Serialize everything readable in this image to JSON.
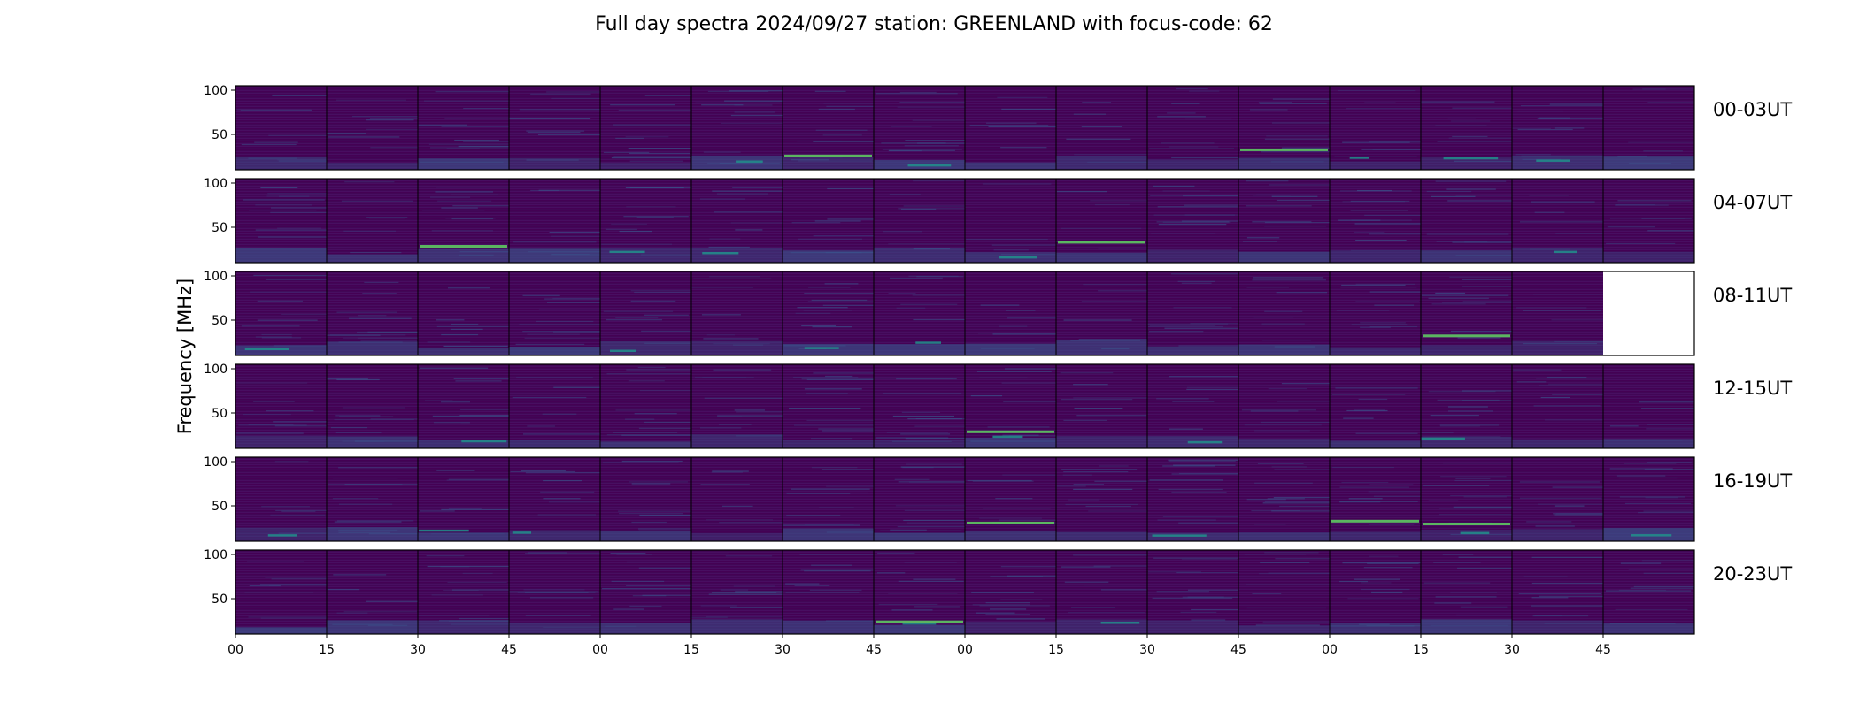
{
  "chart_data": {
    "type": "heatmap",
    "title": "Full day spectra 2024/09/27 station: GREENLAND with focus-code: 62",
    "ylabel": "Frequency [MHz]",
    "xlabel": "",
    "ylim": [
      10,
      105
    ],
    "y_ticks": [
      100,
      50
    ],
    "x_tick_labels": [
      "00",
      "15",
      "30",
      "45",
      "00",
      "15",
      "30",
      "45",
      "00",
      "15",
      "30",
      "45",
      "00",
      "15",
      "30",
      "45"
    ],
    "colormap": [
      "#440154",
      "#3b528b",
      "#21918c",
      "#5ec962",
      "#fde725"
    ],
    "rows": [
      {
        "label": "00-03UT",
        "missing_panels": []
      },
      {
        "label": "04-07UT",
        "missing_panels": []
      },
      {
        "label": "08-11UT",
        "missing_panels": [
          15
        ]
      },
      {
        "label": "12-15UT",
        "missing_panels": []
      },
      {
        "label": "16-19UT",
        "missing_panels": []
      },
      {
        "label": "20-23UT",
        "missing_panels": []
      }
    ],
    "panels_per_row": 16,
    "panel_minutes": 15
  }
}
